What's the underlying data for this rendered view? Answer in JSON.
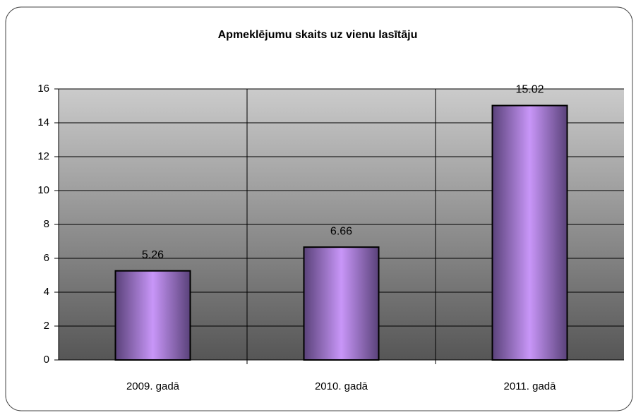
{
  "chart_data": {
    "type": "bar",
    "title": "Apmeklējumu skaits uz vienu lasītāju",
    "categories": [
      "2009. gadā",
      "2010. gadā",
      "2011. gadā"
    ],
    "values": [
      5.26,
      6.66,
      15.02
    ],
    "color": "#c896f8",
    "ylim": [
      0,
      16
    ],
    "yticks": [
      0,
      2,
      4,
      6,
      8,
      10,
      12,
      14,
      16
    ],
    "grid": true
  }
}
